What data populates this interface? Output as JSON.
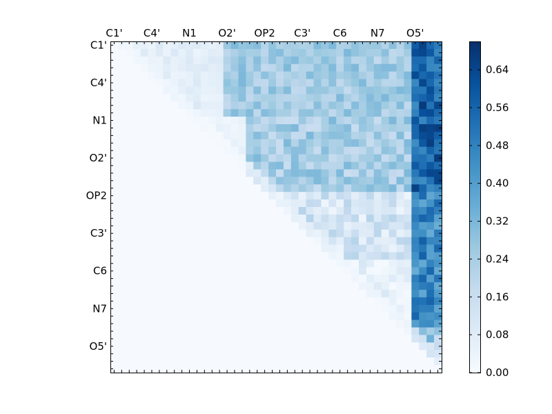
{
  "chart_data": {
    "type": "heatmap",
    "title": "",
    "xlabel": "",
    "ylabel": "",
    "x_tick_labels": [
      "C1'",
      "C4'",
      "N1",
      "O2'",
      "OP2",
      "C3'",
      "C6",
      "N7",
      "O5'"
    ],
    "y_tick_labels": [
      "C1'",
      "C4'",
      "N1",
      "O2'",
      "OP2",
      "C3'",
      "C6",
      "N7",
      "O5'"
    ],
    "grid_size": 44,
    "tick_label_every": 5,
    "upper_triangular": true,
    "colormap": "Blues",
    "color_low": "#f7fbff",
    "color_high": "#08306b",
    "vmin": 0.0,
    "vmax": 0.7,
    "colorbar_ticks": [
      "0.00",
      "0.08",
      "0.16",
      "0.24",
      "0.32",
      "0.40",
      "0.48",
      "0.56",
      "0.64"
    ],
    "colorbar_values": [
      0.0,
      0.08,
      0.16,
      0.24,
      0.32,
      0.4,
      0.48,
      0.56,
      0.64
    ],
    "row_blocks": [
      {
        "rows": [
          0,
          9
        ],
        "level": 0.3,
        "note": "upper-left block, rows C1'..N1"
      },
      {
        "rows": [
          10,
          19
        ],
        "level": 0.3
      },
      {
        "rows": [
          20,
          28
        ],
        "level": 0.2
      },
      {
        "rows": [
          29,
          38
        ],
        "level": 0.16
      },
      {
        "rows": [
          39,
          43
        ],
        "level": 0.1
      }
    ],
    "strong_columns": {
      "start": 40,
      "end": 43,
      "level": 0.55
    },
    "peak_value": 0.69
  }
}
